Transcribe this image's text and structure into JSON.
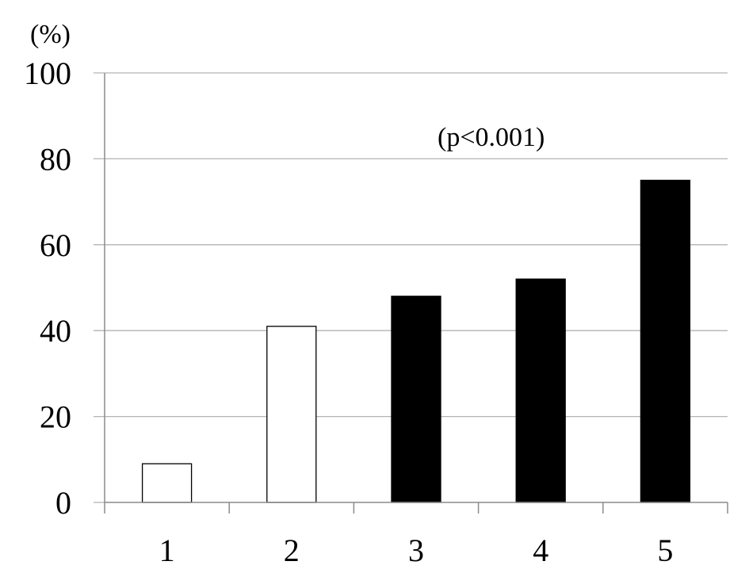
{
  "chart_data": {
    "type": "bar",
    "categories": [
      "1",
      "2",
      "3",
      "4",
      "5"
    ],
    "values": [
      9,
      41,
      48,
      52,
      75
    ],
    "bar_colors": [
      "#ffffff",
      "#ffffff",
      "#000000",
      "#000000",
      "#000000"
    ],
    "ylim": [
      0,
      100
    ],
    "yticks": [
      "0",
      "20",
      "40",
      "60",
      "80",
      "100"
    ],
    "unit_label": "(%)",
    "annotation": "(p<0.001)",
    "title": "",
    "xlabel": "",
    "ylabel": "",
    "grid": true
  }
}
